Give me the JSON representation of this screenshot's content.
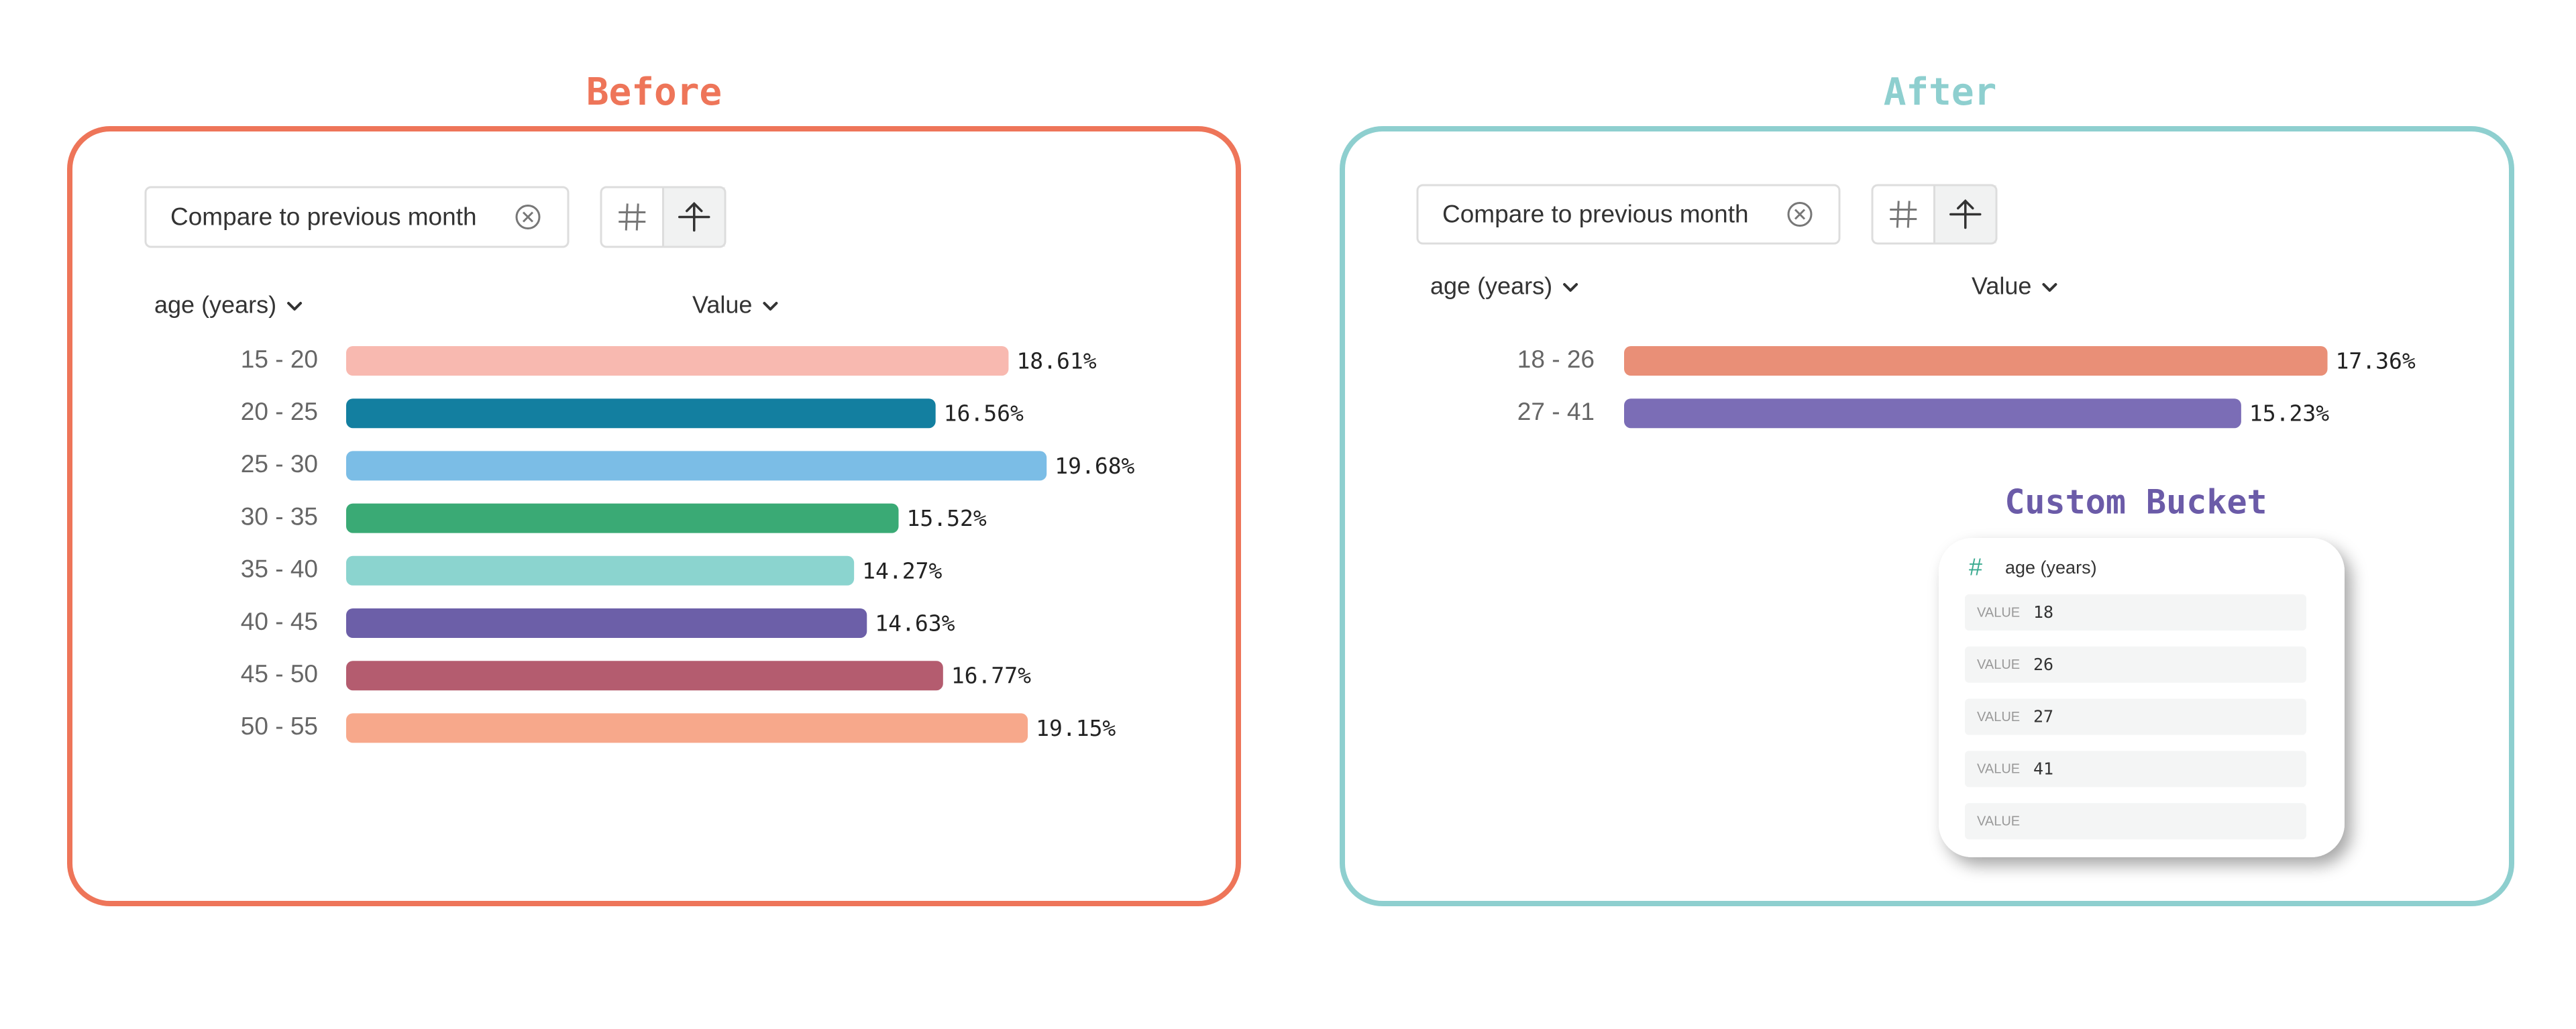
{
  "chart_data": [
    {
      "type": "bar",
      "title": "Before",
      "color": "#ee7559",
      "categories": [
        "15 - 20",
        "20 - 25",
        "25 - 30",
        "30 - 35",
        "35 - 40",
        "40 - 45",
        "45 - 50",
        "50 - 55"
      ],
      "values": [
        18.61,
        16.56,
        19.68,
        15.52,
        14.27,
        14.63,
        16.77,
        19.15
      ],
      "value_labels": [
        "18.61%",
        "16.56%",
        "19.68%",
        "15.52%",
        "14.27%",
        "14.63%",
        "16.77%",
        "19.15%"
      ],
      "colors": [
        "#f8b9b0",
        "#137fa0",
        "#7bbde6",
        "#3aaa75",
        "#8bd4cf",
        "#6c5fa8",
        "#b45c6f",
        "#f7a88b"
      ]
    },
    {
      "type": "bar",
      "title": "After",
      "color": "#8ecfcf",
      "categories": [
        "18 - 26",
        "27 - 41"
      ],
      "values": [
        17.36,
        15.23
      ],
      "value_labels": [
        "17.36%",
        "15.23%"
      ],
      "colors": [
        "#e98f77",
        "#7b6db6"
      ]
    }
  ],
  "panels": [
    {
      "compare": "Compare to previous month",
      "dimension": "age (years)",
      "metric": "Value"
    },
    {
      "compare": "Compare to previous month",
      "dimension": "age (years)",
      "metric": "Value"
    }
  ],
  "custom_bucket": {
    "title": "Custom Bucket",
    "field": "age (years)",
    "rows": [
      {
        "label": "VALUE",
        "value": 18
      },
      {
        "label": "VALUE",
        "value": 26
      },
      {
        "label": "VALUE",
        "value": 27
      },
      {
        "label": "VALUE",
        "value": 41
      },
      {
        "label": "VALUE"
      }
    ]
  }
}
